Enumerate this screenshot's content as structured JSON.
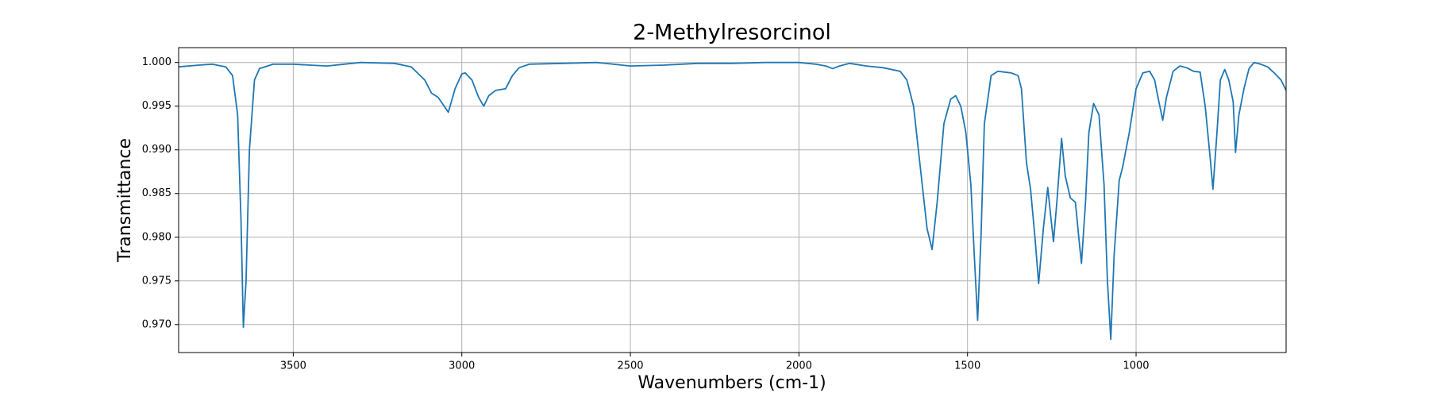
{
  "chart_data": {
    "type": "line",
    "title": "2-Methylresorcinol",
    "xlabel": "Wavenumbers (cm-1)",
    "ylabel": "Transmittance",
    "xlim": [
      3840,
      555
    ],
    "ylim": [
      0.9668,
      1.0017
    ],
    "xticks": [
      3500,
      3000,
      2500,
      2000,
      1500,
      1000
    ],
    "yticks": [
      {
        "value": 0.97,
        "label": "0.970"
      },
      0.975,
      {
        "value": 0.98,
        "label": "0.980"
      },
      0.985,
      {
        "value": 0.99,
        "label": "0.990"
      },
      0.995,
      {
        "value": 1,
        "label": "1.000"
      }
    ],
    "grid": true,
    "series": [
      {
        "name": "2-Methylresorcinol",
        "color": "#1f77b4",
        "x": [
          3840,
          3780,
          3740,
          3700,
          3680,
          3665,
          3655,
          3648,
          3640,
          3630,
          3615,
          3600,
          3560,
          3500,
          3400,
          3300,
          3200,
          3150,
          3110,
          3090,
          3070,
          3040,
          3020,
          3000,
          2990,
          2970,
          2950,
          2935,
          2920,
          2900,
          2870,
          2850,
          2830,
          2800,
          2700,
          2600,
          2500,
          2400,
          2300,
          2200,
          2100,
          2000,
          1950,
          1920,
          1900,
          1880,
          1850,
          1800,
          1750,
          1700,
          1680,
          1660,
          1640,
          1620,
          1605,
          1590,
          1570,
          1550,
          1535,
          1520,
          1505,
          1490,
          1480,
          1470,
          1460,
          1450,
          1430,
          1410,
          1390,
          1370,
          1350,
          1340,
          1325,
          1313,
          1300,
          1289,
          1275,
          1262,
          1252,
          1245,
          1235,
          1221,
          1210,
          1195,
          1180,
          1170,
          1162,
          1150,
          1140,
          1126,
          1110,
          1095,
          1085,
          1075,
          1065,
          1050,
          1040,
          1020,
          1000,
          980,
          960,
          945,
          935,
          921,
          910,
          890,
          870,
          850,
          830,
          810,
          795,
          780,
          772,
          760,
          750,
          737,
          725,
          712,
          705,
          695,
          680,
          665,
          650,
          630,
          610,
          590,
          570,
          555
        ],
        "values": [
          0.9995,
          0.9997,
          0.9998,
          0.9995,
          0.9985,
          0.994,
          0.982,
          0.9697,
          0.975,
          0.99,
          0.998,
          0.9993,
          0.9998,
          0.9998,
          0.9996,
          1.0,
          0.9999,
          0.9995,
          0.998,
          0.9965,
          0.996,
          0.9943,
          0.997,
          0.9987,
          0.9988,
          0.998,
          0.996,
          0.995,
          0.9962,
          0.9968,
          0.997,
          0.9985,
          0.9994,
          0.9998,
          0.9999,
          1.0,
          0.9996,
          0.9997,
          0.9999,
          0.9999,
          1.0,
          1.0,
          0.9998,
          0.9996,
          0.9993,
          0.9996,
          0.9999,
          0.9996,
          0.9994,
          0.999,
          0.998,
          0.995,
          0.988,
          0.981,
          0.9786,
          0.984,
          0.993,
          0.9958,
          0.9962,
          0.995,
          0.992,
          0.986,
          0.978,
          0.9705,
          0.98,
          0.993,
          0.9985,
          0.999,
          0.9989,
          0.9988,
          0.9985,
          0.997,
          0.9885,
          0.9855,
          0.98,
          0.9747,
          0.981,
          0.9857,
          0.982,
          0.9795,
          0.984,
          0.9913,
          0.987,
          0.9845,
          0.984,
          0.98,
          0.977,
          0.984,
          0.992,
          0.9953,
          0.994,
          0.986,
          0.975,
          0.9683,
          0.978,
          0.9865,
          0.988,
          0.992,
          0.997,
          0.9988,
          0.999,
          0.998,
          0.996,
          0.9934,
          0.996,
          0.999,
          0.9996,
          0.9994,
          0.999,
          0.9989,
          0.995,
          0.989,
          0.9855,
          0.992,
          0.998,
          0.9992,
          0.998,
          0.9955,
          0.9897,
          0.994,
          0.997,
          0.9993,
          1.0,
          0.9998,
          0.9995,
          0.9988,
          0.998,
          0.9968
        ]
      }
    ]
  }
}
